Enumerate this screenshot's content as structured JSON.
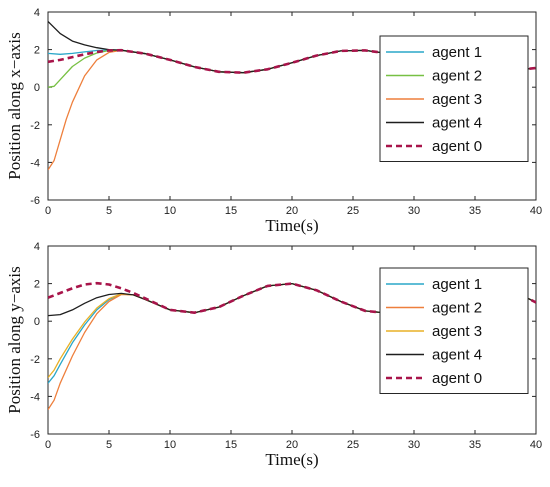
{
  "chart_data": [
    {
      "type": "line",
      "xlabel": "Time(s)",
      "ylabel": "Position along x−axis",
      "xlim": [
        0,
        40
      ],
      "ylim": [
        -6,
        4
      ],
      "xticks": [
        "0",
        "5",
        "10",
        "15",
        "20",
        "25",
        "30",
        "35",
        "40"
      ],
      "yticks": [
        "4",
        "2",
        "0",
        "-2",
        "-4",
        "-6"
      ],
      "grid": false,
      "legend_position": "top-right",
      "series": [
        {
          "name": "agent 1",
          "color": "#2AA7C9",
          "style": "solid",
          "x": [
            0,
            1,
            2,
            3,
            4,
            5,
            6,
            8,
            10,
            12,
            14,
            16,
            18,
            20,
            22,
            24,
            26,
            28,
            30,
            32,
            34,
            36,
            38,
            40
          ],
          "y": [
            1.8,
            1.75,
            1.8,
            1.88,
            1.95,
            1.98,
            1.97,
            1.78,
            1.45,
            1.08,
            0.82,
            0.77,
            0.95,
            1.3,
            1.68,
            1.93,
            1.96,
            1.78,
            1.45,
            1.1,
            0.87,
            0.83,
            0.88,
            1.02
          ]
        },
        {
          "name": "agent 2",
          "color": "#77C043",
          "style": "solid",
          "x": [
            0,
            0.5,
            1,
            2,
            3,
            4,
            5,
            6,
            8,
            10,
            12,
            14,
            16,
            18,
            20,
            22,
            24,
            26,
            28,
            30,
            32,
            34,
            36,
            38,
            40
          ],
          "y": [
            0.0,
            0.05,
            0.4,
            1.1,
            1.55,
            1.82,
            1.95,
            1.97,
            1.78,
            1.45,
            1.08,
            0.82,
            0.77,
            0.95,
            1.3,
            1.68,
            1.93,
            1.96,
            1.78,
            1.45,
            1.1,
            0.87,
            0.83,
            0.88,
            1.02
          ]
        },
        {
          "name": "agent 3",
          "color": "#EE7F3C",
          "style": "solid",
          "x": [
            0,
            0.5,
            1,
            1.5,
            2,
            3,
            4,
            5,
            6,
            8,
            10,
            12,
            14,
            16,
            18,
            20,
            22,
            24,
            26,
            28,
            30,
            32,
            34,
            36,
            38,
            40
          ],
          "y": [
            -4.4,
            -3.9,
            -2.8,
            -1.7,
            -0.8,
            0.6,
            1.45,
            1.85,
            1.96,
            1.78,
            1.45,
            1.08,
            0.82,
            0.77,
            0.95,
            1.3,
            1.68,
            1.93,
            1.96,
            1.78,
            1.45,
            1.1,
            0.87,
            0.83,
            0.88,
            1.02
          ]
        },
        {
          "name": "agent 4",
          "color": "#1E1E1E",
          "style": "solid",
          "x": [
            0,
            1,
            2,
            3,
            4,
            5,
            6,
            8,
            10,
            12,
            14,
            16,
            18,
            20,
            22,
            24,
            26,
            28,
            30,
            32,
            34,
            36,
            38,
            40
          ],
          "y": [
            3.5,
            2.85,
            2.45,
            2.25,
            2.1,
            2.0,
            1.97,
            1.78,
            1.45,
            1.08,
            0.82,
            0.77,
            0.95,
            1.3,
            1.68,
            1.93,
            1.96,
            1.78,
            1.45,
            1.1,
            0.87,
            0.83,
            0.88,
            1.02
          ]
        },
        {
          "name": "agent 0",
          "color": "#A8144A",
          "style": "dashed",
          "x": [
            0,
            1,
            2,
            3,
            4,
            5,
            6,
            8,
            10,
            12,
            14,
            16,
            18,
            20,
            22,
            24,
            26,
            28,
            30,
            32,
            34,
            36,
            38,
            40
          ],
          "y": [
            1.35,
            1.45,
            1.6,
            1.75,
            1.87,
            1.95,
            1.97,
            1.78,
            1.45,
            1.08,
            0.82,
            0.77,
            0.95,
            1.3,
            1.68,
            1.93,
            1.96,
            1.78,
            1.45,
            1.1,
            0.87,
            0.83,
            0.88,
            1.02
          ]
        }
      ]
    },
    {
      "type": "line",
      "xlabel": "Time(s)",
      "ylabel": "Position along y−axis",
      "xlim": [
        0,
        40
      ],
      "ylim": [
        -6,
        4
      ],
      "xticks": [
        "0",
        "5",
        "10",
        "15",
        "20",
        "25",
        "30",
        "35",
        "40"
      ],
      "yticks": [
        "4",
        "2",
        "0",
        "-2",
        "-4",
        "-6"
      ],
      "grid": false,
      "legend_position": "top-right",
      "series": [
        {
          "name": "agent 1",
          "color": "#2AA7C9",
          "style": "solid",
          "x": [
            0,
            0.5,
            1,
            2,
            3,
            4,
            5,
            6,
            7,
            8,
            10,
            12,
            14,
            16,
            18,
            20,
            22,
            24,
            26,
            28,
            30,
            32,
            34,
            36,
            38,
            40
          ],
          "y": [
            -3.3,
            -2.9,
            -2.3,
            -1.15,
            -0.2,
            0.6,
            1.15,
            1.45,
            1.4,
            1.15,
            0.6,
            0.45,
            0.75,
            1.35,
            1.88,
            2.0,
            1.65,
            1.05,
            0.55,
            0.42,
            0.7,
            1.3,
            1.83,
            1.98,
            1.65,
            1.0
          ]
        },
        {
          "name": "agent 2",
          "color": "#EE7F3C",
          "style": "solid",
          "x": [
            0,
            0.5,
            1,
            2,
            3,
            4,
            5,
            6,
            7,
            8,
            10,
            12,
            14,
            16,
            18,
            20,
            22,
            24,
            26,
            28,
            30,
            32,
            34,
            36,
            38,
            40
          ],
          "y": [
            -4.7,
            -4.2,
            -3.3,
            -1.85,
            -0.6,
            0.4,
            1.05,
            1.42,
            1.4,
            1.15,
            0.6,
            0.45,
            0.75,
            1.35,
            1.88,
            2.0,
            1.65,
            1.05,
            0.55,
            0.42,
            0.7,
            1.3,
            1.83,
            1.98,
            1.65,
            1.0
          ]
        },
        {
          "name": "agent 3",
          "color": "#E9B026",
          "style": "solid",
          "x": [
            0,
            0.5,
            1,
            2,
            3,
            4,
            5,
            6,
            7,
            8,
            10,
            12,
            14,
            16,
            18,
            20,
            22,
            24,
            26,
            28,
            30,
            32,
            34,
            36,
            38,
            40
          ],
          "y": [
            -3.0,
            -2.6,
            -2.0,
            -0.95,
            -0.05,
            0.7,
            1.2,
            1.45,
            1.4,
            1.15,
            0.6,
            0.45,
            0.75,
            1.35,
            1.88,
            2.0,
            1.65,
            1.05,
            0.55,
            0.42,
            0.7,
            1.3,
            1.83,
            1.98,
            1.65,
            1.0
          ]
        },
        {
          "name": "agent 4",
          "color": "#1E1E1E",
          "style": "solid",
          "x": [
            0,
            1,
            2,
            3,
            4,
            5,
            6,
            7,
            8,
            10,
            12,
            14,
            16,
            18,
            20,
            22,
            24,
            26,
            28,
            30,
            32,
            34,
            36,
            38,
            40
          ],
          "y": [
            0.3,
            0.35,
            0.6,
            0.95,
            1.25,
            1.42,
            1.48,
            1.4,
            1.15,
            0.6,
            0.45,
            0.75,
            1.35,
            1.88,
            2.0,
            1.65,
            1.05,
            0.55,
            0.42,
            0.7,
            1.3,
            1.83,
            1.98,
            1.65,
            1.0
          ]
        },
        {
          "name": "agent 0",
          "color": "#A8144A",
          "style": "dashed",
          "x": [
            0,
            1,
            2,
            3,
            4,
            5,
            6,
            7,
            8,
            10,
            12,
            14,
            16,
            18,
            20,
            22,
            24,
            26,
            28,
            30,
            32,
            34,
            36,
            38,
            40
          ],
          "y": [
            1.25,
            1.5,
            1.75,
            1.95,
            2.02,
            1.95,
            1.75,
            1.5,
            1.2,
            0.6,
            0.45,
            0.75,
            1.35,
            1.88,
            2.0,
            1.65,
            1.05,
            0.55,
            0.42,
            0.7,
            1.3,
            1.83,
            1.98,
            1.65,
            1.0
          ]
        }
      ]
    }
  ]
}
